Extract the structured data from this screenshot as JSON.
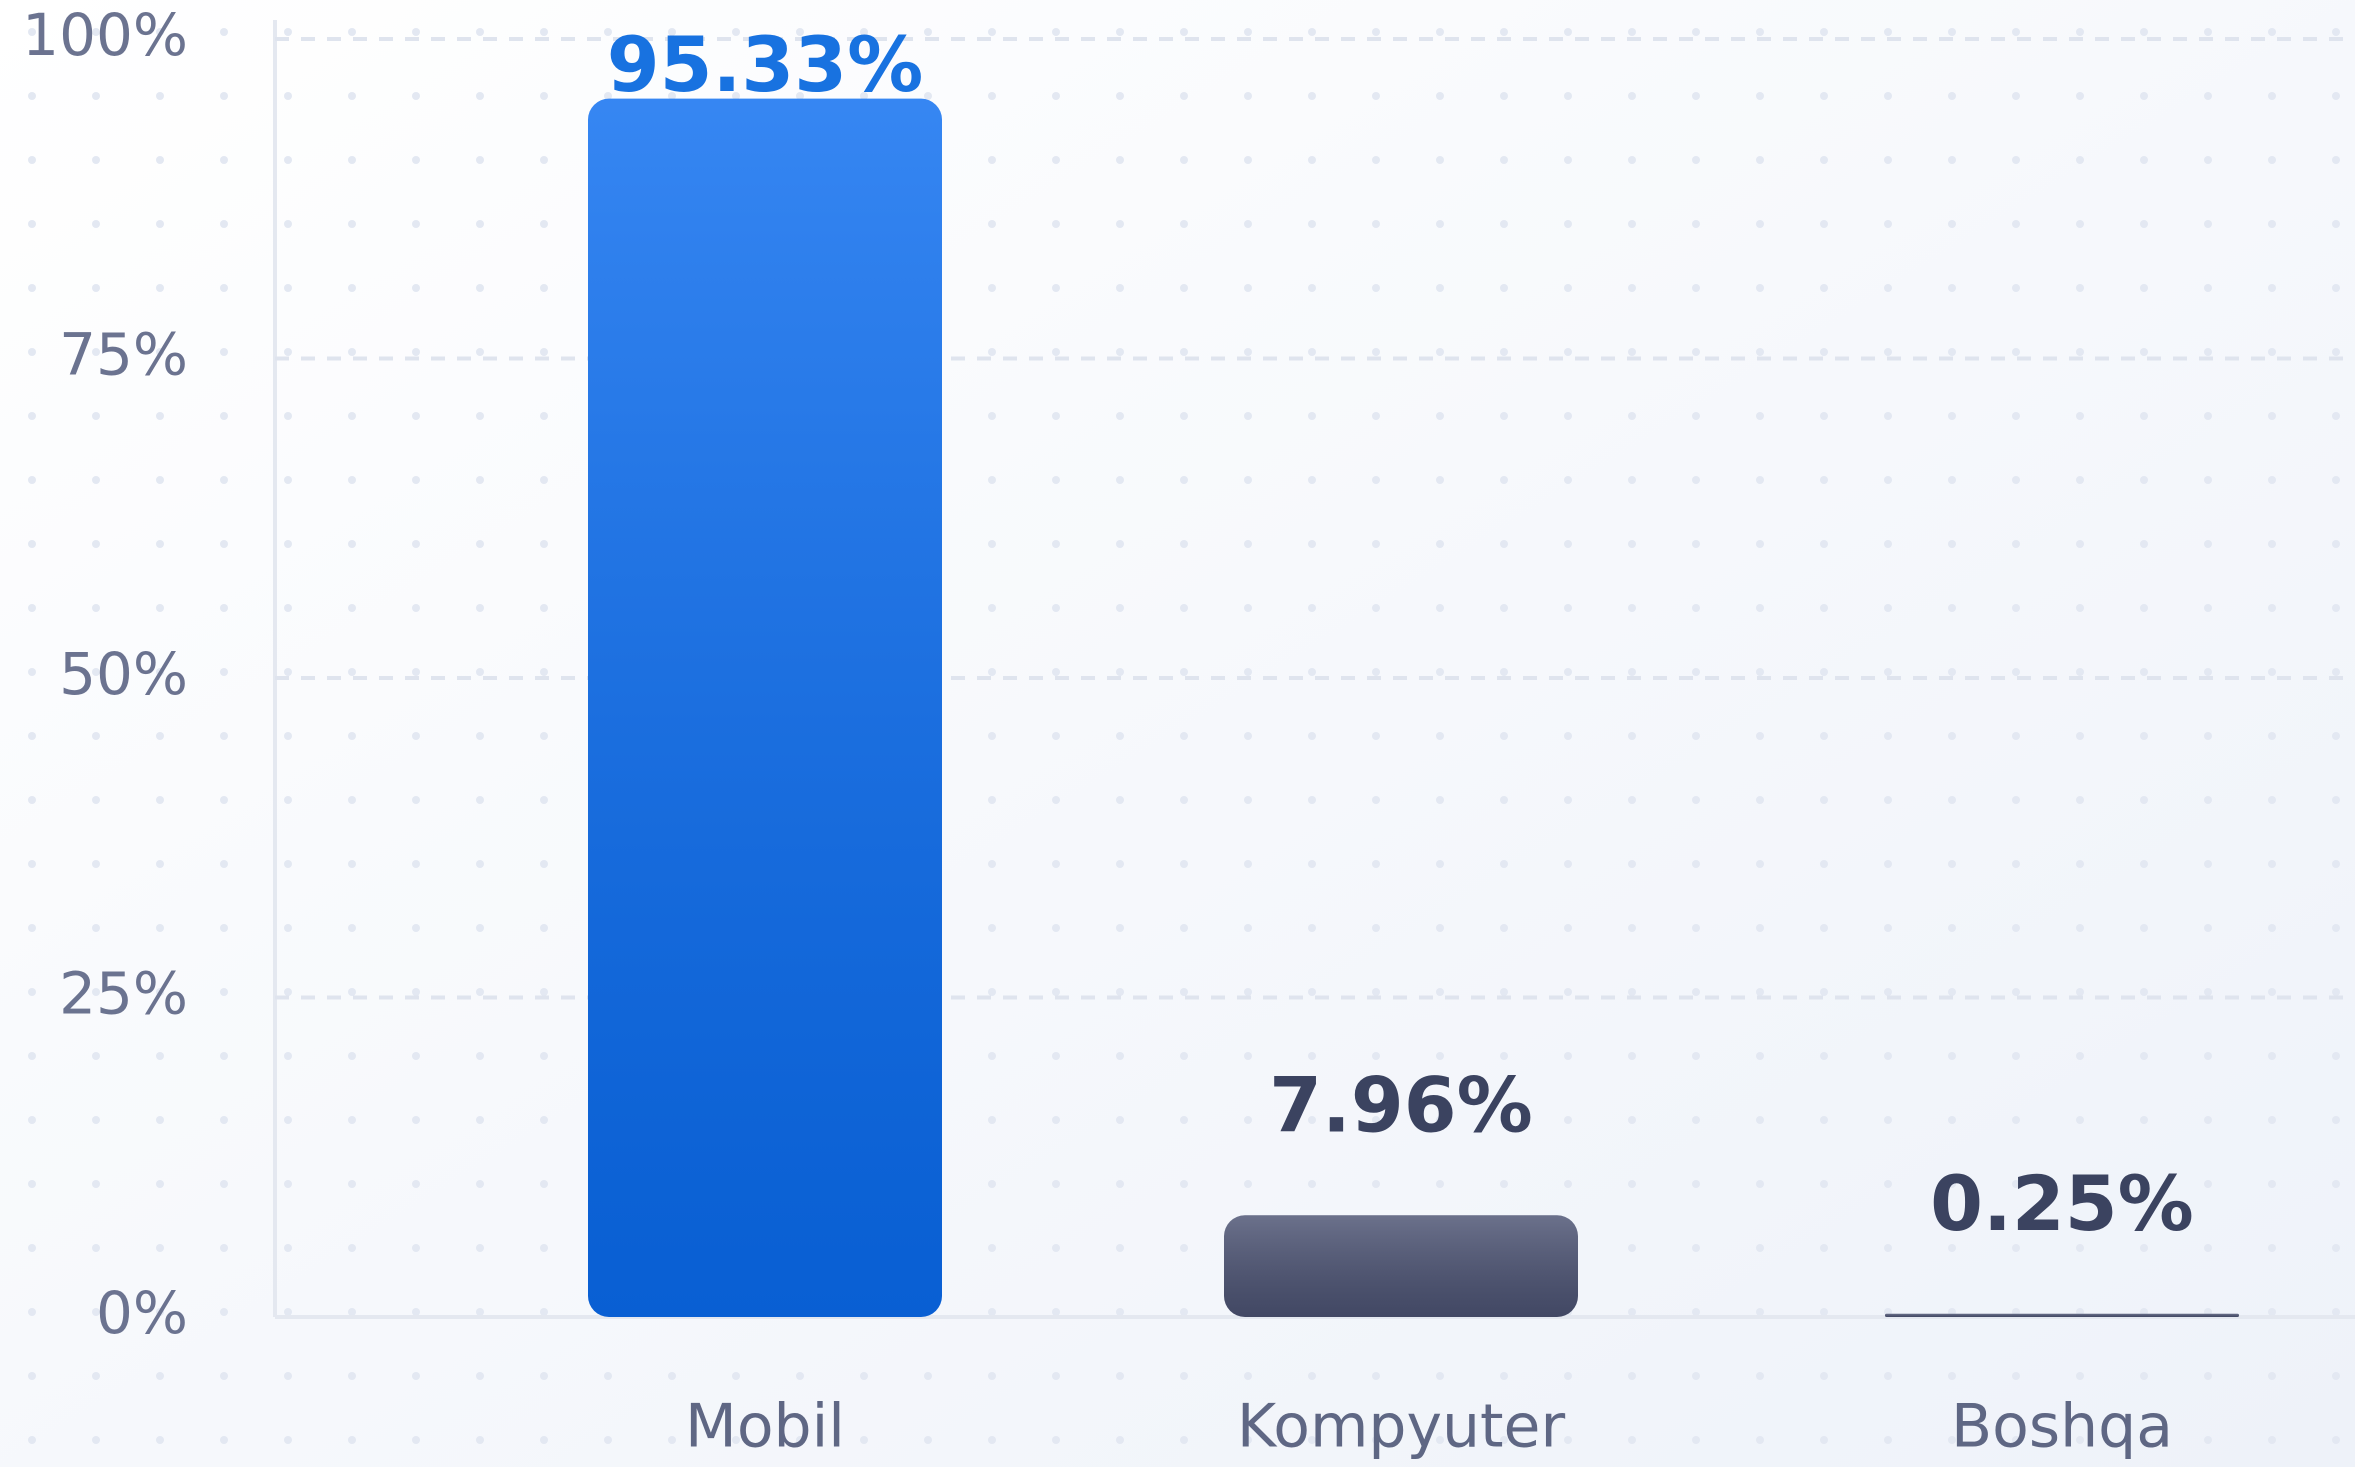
{
  "chart_data": {
    "type": "bar",
    "categories": [
      "Mobil",
      "Kompyuter",
      "Boshqa"
    ],
    "values": [
      95.33,
      7.96,
      0.25
    ],
    "value_labels": [
      "95.33%",
      "7.96%",
      "0.25%"
    ],
    "colors": [
      "#0a6cf0",
      "#4b5272",
      "#4b5272"
    ],
    "label_colors": [
      "#1872e0",
      "#3b4360",
      "#3b4360"
    ],
    "ylim": [
      0,
      100
    ],
    "yticks": [
      {
        "value": 0,
        "label": "0%"
      },
      {
        "value": 25,
        "label": "25%"
      },
      {
        "value": 50,
        "label": "50%"
      },
      {
        "value": 75,
        "label": "75%"
      },
      {
        "value": 100,
        "label": "100%"
      }
    ],
    "grid": true
  }
}
